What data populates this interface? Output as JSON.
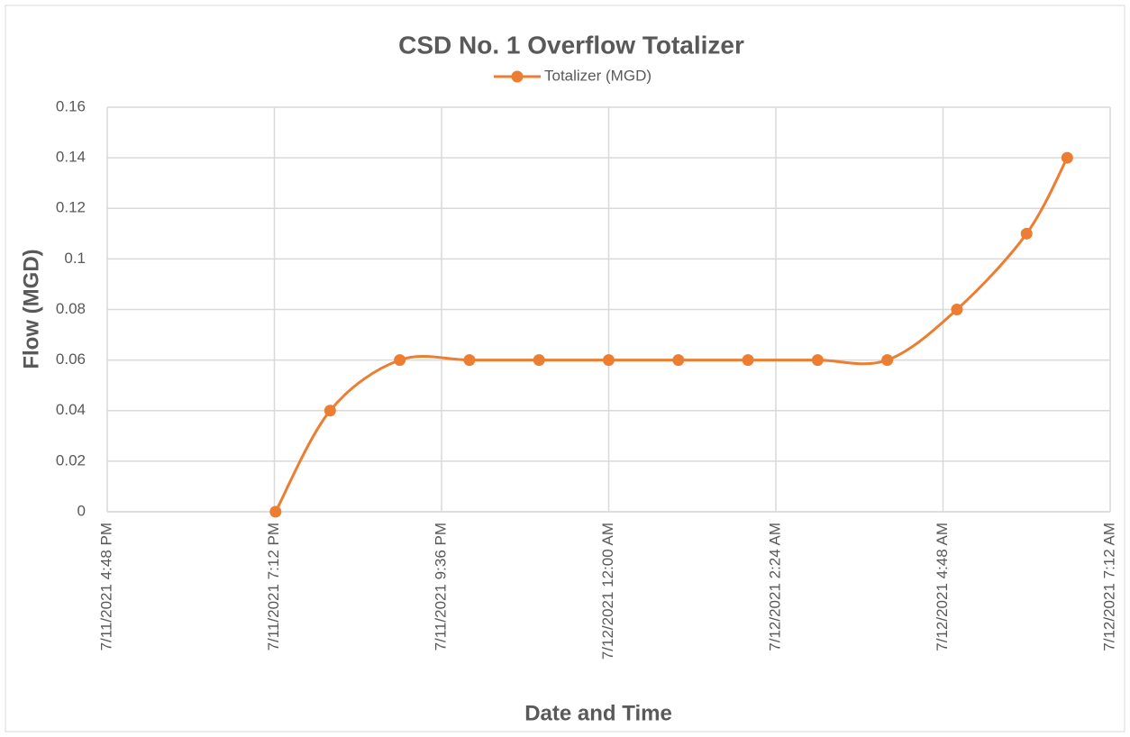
{
  "chart_data": {
    "type": "line",
    "title": "CSD No. 1 Overflow Totalizer",
    "x_label": "Date and Time",
    "y_label": "Flow (MGD)",
    "x": [
      "2021-07-11T19:13",
      "2021-07-11T20:00",
      "2021-07-11T21:00",
      "2021-07-11T22:00",
      "2021-07-11T23:00",
      "2021-07-12T00:00",
      "2021-07-12T01:00",
      "2021-07-12T02:00",
      "2021-07-12T03:00",
      "2021-07-12T04:00",
      "2021-07-12T05:00",
      "2021-07-12T06:00",
      "2021-07-12T06:35"
    ],
    "series": [
      {
        "name": "Totalizer (MGD)",
        "color": "#ed7d31",
        "values": [
          0,
          0.04,
          0.06,
          0.06,
          0.06,
          0.06,
          0.06,
          0.06,
          0.06,
          0.06,
          0.08,
          0.11,
          0.14
        ]
      }
    ],
    "xlim": [
      "2021-07-11T16:48",
      "2021-07-12T07:12"
    ],
    "xticks": [
      {
        "value": "2021-07-11T16:48",
        "label": "7/11/2021 4:48 PM"
      },
      {
        "value": "2021-07-11T19:12",
        "label": "7/11/2021 7:12 PM"
      },
      {
        "value": "2021-07-11T21:36",
        "label": "7/11/2021 9:36 PM"
      },
      {
        "value": "2021-07-12T00:00",
        "label": "7/12/2021 12:00 AM"
      },
      {
        "value": "2021-07-12T02:24",
        "label": "7/12/2021 2:24 AM"
      },
      {
        "value": "2021-07-12T04:48",
        "label": "7/12/2021 4:48 AM"
      },
      {
        "value": "2021-07-12T07:12",
        "label": "7/12/2021 7:12 AM"
      }
    ],
    "ylim": [
      0,
      0.16
    ],
    "yticks": [
      0,
      0.02,
      0.04,
      0.06,
      0.08,
      0.1,
      0.12,
      0.14,
      0.16
    ],
    "grid": true,
    "smooth": true,
    "legend": "top"
  }
}
